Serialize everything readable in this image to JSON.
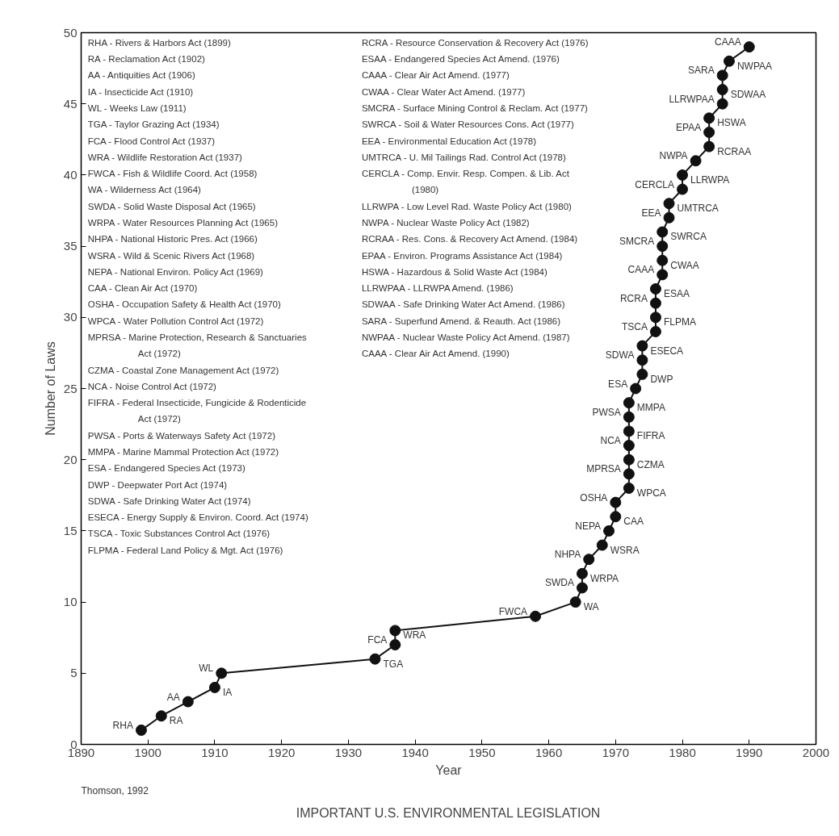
{
  "chart_data": {
    "type": "line",
    "title": "IMPORTANT U.S. ENVIRONMENTAL LEGISLATION",
    "xlabel": "Year",
    "ylabel": "Number of Laws",
    "xlim": [
      1890,
      2000
    ],
    "xticks": [
      1890,
      1900,
      1910,
      1920,
      1930,
      1940,
      1950,
      1960,
      1970,
      1980,
      1990,
      2000
    ],
    "ylim": [
      0,
      50
    ],
    "yticks": [
      0,
      5,
      10,
      15,
      20,
      25,
      30,
      35,
      40,
      45,
      50
    ],
    "grid": false,
    "marker": "circle",
    "line_style": "solid",
    "series": [
      {
        "color": "#111111",
        "x": [
          1899,
          1902,
          1906,
          1910,
          1911,
          1934,
          1937,
          1937,
          1958,
          1964,
          1965,
          1965,
          1966,
          1968,
          1969,
          1970,
          1970,
          1972,
          1972,
          1972,
          1972,
          1972,
          1972,
          1972,
          1973,
          1974,
          1974,
          1974,
          1976,
          1976,
          1976,
          1976,
          1977,
          1977,
          1977,
          1977,
          1978,
          1978,
          1980,
          1980,
          1982,
          1984,
          1984,
          1984,
          1986,
          1986,
          1986,
          1987,
          1990
        ],
        "values": [
          1,
          2,
          3,
          4,
          5,
          6,
          7,
          8,
          9,
          10,
          11,
          12,
          13,
          14,
          15,
          16,
          17,
          18,
          19,
          20,
          21,
          22,
          23,
          24,
          25,
          26,
          27,
          28,
          29,
          30,
          31,
          32,
          33,
          34,
          35,
          36,
          37,
          38,
          39,
          40,
          41,
          42,
          43,
          44,
          45,
          46,
          47,
          48,
          49
        ]
      }
    ],
    "annotations": [
      "Thomson, 1992",
      "RHA - Rivers & Harbors Act (1899)",
      "RA - Reclamation Act (1902)",
      "AA - Antiquities Act (1906)",
      "IA - Insecticide Act (1910)",
      "WL - Weeks Law (1911)",
      "TGA - Taylor Grazing Act (1934)",
      "FCA - Flood Control Act (1937)",
      "WRA - Wildlife Restoration Act (1937)",
      "FWCA - Fish & Wildlife Coord. Act (1958)",
      "WA - Wilderness Act (1964)",
      "SWDA - Solid Waste Disposal Act (1965)",
      "WRPA - Water Resources Planning Act (1965)",
      "NHPA - National Historic Pres. Act (1966)",
      "WSRA - Wild & Scenic Rivers Act (1968)",
      "NEPA - National Environ. Policy Act (1969)",
      "CAA - Clean Air Act (1970)",
      "OSHA - Occupation Safety & Health Act (1970)",
      "WPCA - Water Pollution Control Act (1972)",
      "MPRSA - Marine Protection, Research & Sanctuaries Act (1972)",
      "CZMA - Coastal Zone Management Act (1972)",
      "NCA - Noise Control Act (1972)",
      "FIFRA - Federal Insecticide, Fungicide & Rodenticide Act (1972)",
      "PWSA - Ports & Waterways Safety Act (1972)",
      "MMPA - Marine Mammal Protection Act (1972)",
      "ESA - Endangered Species Act (1973)",
      "DWP - Deepwater Port Act (1974)",
      "SDWA - Safe Drinking Water Act (1974)",
      "ESECA - Energy Supply & Environ. Coord. Act (1974)",
      "TSCA - Toxic Substances Control Act (1976)",
      "FLPMA - Federal Land Policy & Mgt. Act (1976)",
      "RCRA - Resource Conservation & Recovery Act (1976)",
      "ESAA - Endangered Species Act Amend. (1976)",
      "CAAA - Clear Air Act Amend. (1977)",
      "CWAA - Clear Water Act Amend. (1977)",
      "SMCRA - Surface Mining Control & Reclam. Act (1977)",
      "SWRCA - Soil & Water Resources Cons. Act (1977)",
      "EEA - Environmental Education Act (1978)",
      "UMTRCA - U. Mil Tailings Rad. Control Act (1978)",
      "CERCLA - Comp. Envir. Resp. Compen. & Lib. Act (1980)",
      "LLRWPA - Low Level Rad. Waste Policy Act (1980)",
      "NWPA - Nuclear Waste Policy Act (1982)",
      "RCRAA - Res. Cons. & Recovery Act Amend. (1984)",
      "EPAA - Environ. Programs Assistance Act (1984)",
      "HSWA - Hazardous & Solid Waste Act (1984)",
      "LLRWPAA - LLRWPA Amend. (1986)",
      "SDWAA - Safe Drinking Water Act Amend. (1986)",
      "SARA - Superfund Amend. & Reauth. Act (1986)",
      "NWPAA - Nuclear Waste Policy Act Amend. (1987)",
      "CAAA - Clear Air Act Amend. (1990)",
      {
        "text": "RHA",
        "x": 1899,
        "y": 1
      },
      {
        "text": "RA",
        "x": 1902,
        "y": 2
      },
      {
        "text": "AA",
        "x": 1906,
        "y": 3
      },
      {
        "text": "IA",
        "x": 1910,
        "y": 4
      },
      {
        "text": "WL",
        "x": 1911,
        "y": 5
      },
      {
        "text": "TGA",
        "x": 1934,
        "y": 6
      },
      {
        "text": "FCA",
        "x": 1937,
        "y": 7
      },
      {
        "text": "WRA",
        "x": 1937,
        "y": 8
      },
      {
        "text": "FWCA",
        "x": 1958,
        "y": 9
      },
      {
        "text": "WA",
        "x": 1964,
        "y": 10
      },
      {
        "text": "SWDA",
        "x": 1965,
        "y": 11
      },
      {
        "text": "WRPA",
        "x": 1965,
        "y": 12
      },
      {
        "text": "NHPA",
        "x": 1966,
        "y": 13
      },
      {
        "text": "WSRA",
        "x": 1968,
        "y": 14
      },
      {
        "text": "NEPA",
        "x": 1969,
        "y": 15
      },
      {
        "text": "CAA",
        "x": 1970,
        "y": 16
      },
      {
        "text": "OSHA",
        "x": 1970,
        "y": 17
      },
      {
        "text": "WPCA",
        "x": 1972,
        "y": 18
      },
      {
        "text": "MPRSA",
        "x": 1972,
        "y": 19
      },
      {
        "text": "CZMA",
        "x": 1972,
        "y": 20
      },
      {
        "text": "NCA",
        "x": 1972,
        "y": 21
      },
      {
        "text": "FIFRA",
        "x": 1972,
        "y": 22
      },
      {
        "text": "PWSA",
        "x": 1972,
        "y": 23
      },
      {
        "text": "MMPA",
        "x": 1972,
        "y": 24
      },
      {
        "text": "ESA",
        "x": 1973,
        "y": 25
      },
      {
        "text": "DWP",
        "x": 1974,
        "y": 26
      },
      {
        "text": "SDWA",
        "x": 1974,
        "y": 27
      },
      {
        "text": "ESECA",
        "x": 1974,
        "y": 28
      },
      {
        "text": "TSCA",
        "x": 1976,
        "y": 29
      },
      {
        "text": "FLPMA",
        "x": 1976,
        "y": 30
      },
      {
        "text": "RCRA",
        "x": 1976,
        "y": 31
      },
      {
        "text": "ESAA",
        "x": 1976,
        "y": 32
      },
      {
        "text": "CAAA",
        "x": 1977,
        "y": 33
      },
      {
        "text": "CWAA",
        "x": 1977,
        "y": 34
      },
      {
        "text": "SMCRA",
        "x": 1977,
        "y": 35
      },
      {
        "text": "SWRCA",
        "x": 1977,
        "y": 36
      },
      {
        "text": "EEA",
        "x": 1978,
        "y": 37
      },
      {
        "text": "UMTRCA",
        "x": 1978,
        "y": 38
      },
      {
        "text": "CERCLA",
        "x": 1980,
        "y": 39
      },
      {
        "text": "LLRWPA",
        "x": 1980,
        "y": 40
      },
      {
        "text": "NWPA",
        "x": 1982,
        "y": 41
      },
      {
        "text": "RCRAA",
        "x": 1984,
        "y": 42
      },
      {
        "text": "EPAA",
        "x": 1984,
        "y": 43
      },
      {
        "text": "HSWA",
        "x": 1984,
        "y": 44
      },
      {
        "text": "LLRWPAA",
        "x": 1986,
        "y": 45
      },
      {
        "text": "SDWAA",
        "x": 1986,
        "y": 46
      },
      {
        "text": "SARA",
        "x": 1986,
        "y": 47
      },
      {
        "text": "NWPAA",
        "x": 1987,
        "y": 48
      },
      {
        "text": "CAAA",
        "x": 1990,
        "y": 49
      }
    ]
  }
}
